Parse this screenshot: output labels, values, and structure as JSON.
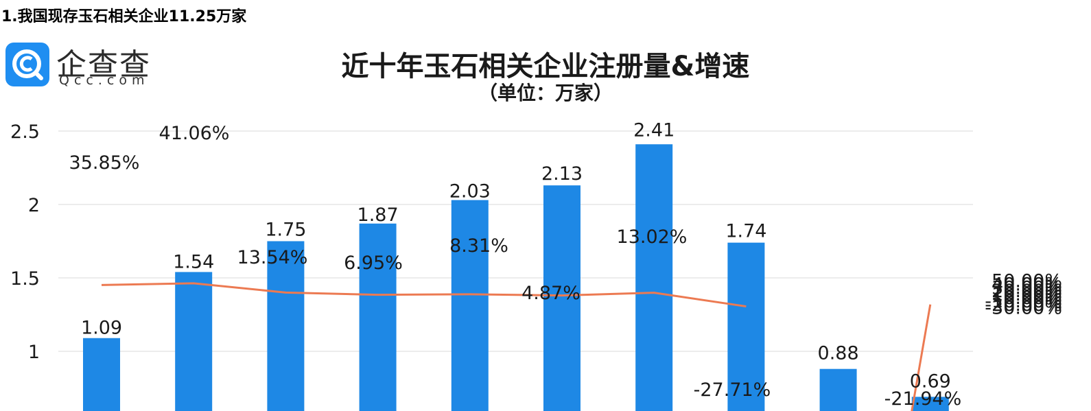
{
  "heading": "1.我国现存玉石相关企业11.25万家",
  "logo": {
    "name": "企查查",
    "domain": "Qcc.com",
    "icon": "qcc-logo-icon"
  },
  "chart_data": {
    "type": "bar",
    "title": "近十年玉石相关企业注册量&增速",
    "subtitle": "（单位：万家）",
    "values": [
      1.09,
      1.54,
      1.75,
      1.87,
      2.03,
      2.13,
      2.41,
      1.74,
      0.88,
      0.69
    ],
    "value_labels": [
      "1.09",
      "1.54",
      "1.75",
      "1.87",
      "2.03",
      "2.13",
      "2.41",
      "1.74",
      "0.88",
      "0.69"
    ],
    "growth": [
      35.85,
      41.06,
      13.54,
      6.95,
      8.31,
      4.87,
      13.02,
      -27.71,
      null,
      -21.94
    ],
    "growth_labels": [
      "35.85%",
      "41.06%",
      "13.54%",
      "6.95%",
      "8.31%",
      "4.87%",
      "13.02%",
      "-27.71%",
      "",
      "-21.94%"
    ],
    "left_axis": {
      "ticks": [
        "2.5",
        "2",
        "1.5",
        "1"
      ],
      "tick_values": [
        2.5,
        2,
        1.5,
        1
      ],
      "visible_range": [
        0.65,
        2.5
      ]
    },
    "right_axis": {
      "ticks": [
        "50.00%",
        "40.00%",
        "30.00%",
        "20.00%",
        "10.00%",
        "0.00%",
        "-10.00%",
        "-20.00%",
        "-30.00%"
      ],
      "tick_values": [
        50,
        40,
        30,
        20,
        10,
        0,
        -10,
        -20,
        -30
      ]
    },
    "grid": true,
    "colors": {
      "bar": "#1e88e5",
      "line": "#ec7a52",
      "grid": "#d9d9d9",
      "text": "#1a1a1a"
    }
  }
}
